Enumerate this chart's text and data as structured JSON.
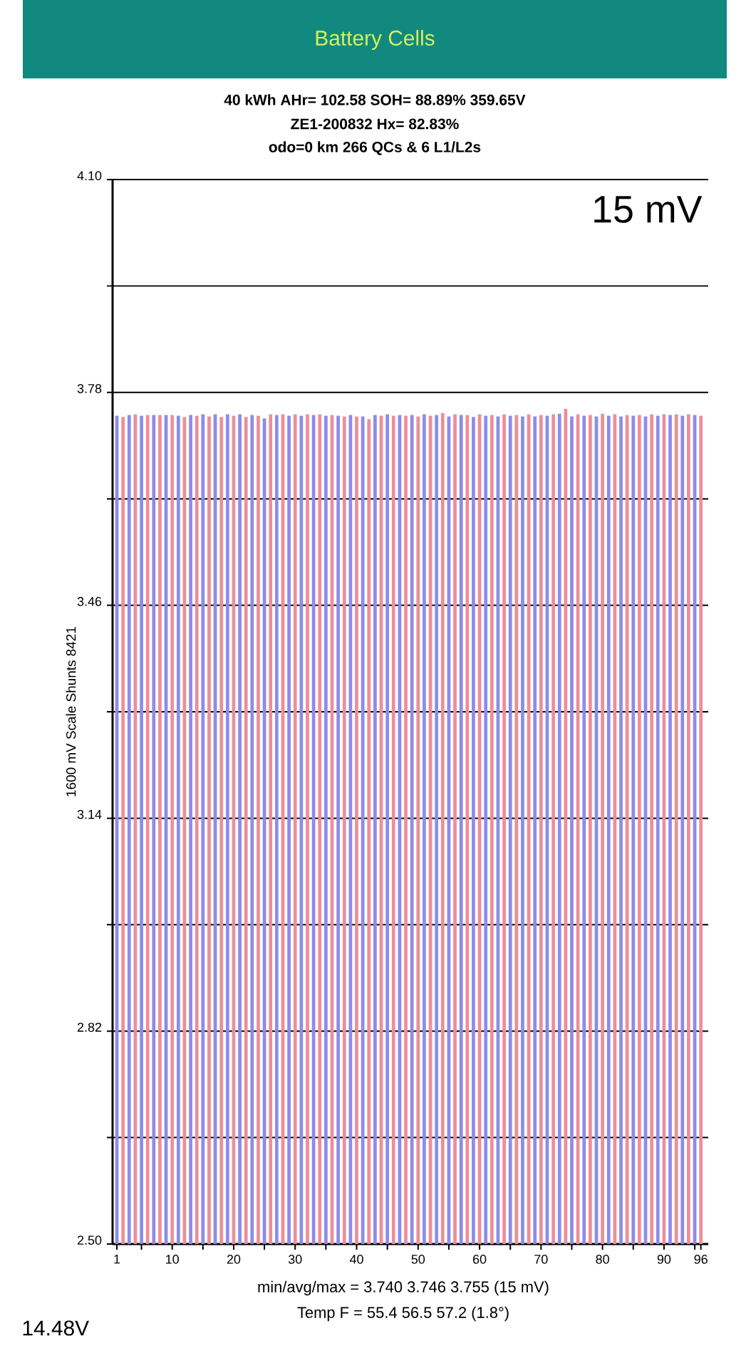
{
  "chart_data": {
    "type": "bar",
    "title": "Battery Cells",
    "ylabel": "1600 mV Scale   Shunts 8421",
    "annotations": [
      "40 kWh  AHr= 102.58  SOH= 88.89%   359.65V",
      "ZE1-200832   Hx= 82.83%",
      "odo=0 km 266 QCs & 6 L1/L2s",
      "15 mV",
      "min/avg/max = 3.740 3.746 3.755  (15 mV)",
      "Temp F = 55.4  56.5  57.2  (1.8°)",
      "14.48V"
    ],
    "x": [
      1,
      2,
      3,
      4,
      5,
      6,
      7,
      8,
      9,
      10,
      11,
      12,
      13,
      14,
      15,
      16,
      17,
      18,
      19,
      20,
      21,
      22,
      23,
      24,
      25,
      26,
      27,
      28,
      29,
      30,
      31,
      32,
      33,
      34,
      35,
      36,
      37,
      38,
      39,
      40,
      41,
      42,
      43,
      44,
      45,
      46,
      47,
      48,
      49,
      50,
      51,
      52,
      53,
      54,
      55,
      56,
      57,
      58,
      59,
      60,
      61,
      62,
      63,
      64,
      65,
      66,
      67,
      68,
      69,
      70,
      71,
      72,
      73,
      74,
      75,
      76,
      77,
      78,
      79,
      80,
      81,
      82,
      83,
      84,
      85,
      86,
      87,
      88,
      89,
      90,
      91,
      92,
      93,
      94,
      95,
      96
    ],
    "values": [
      3.745,
      3.743,
      3.746,
      3.747,
      3.745,
      3.746,
      3.746,
      3.746,
      3.746,
      3.746,
      3.745,
      3.743,
      3.746,
      3.745,
      3.747,
      3.744,
      3.747,
      3.743,
      3.747,
      3.745,
      3.747,
      3.743,
      3.746,
      3.745,
      3.741,
      3.747,
      3.746,
      3.747,
      3.745,
      3.747,
      3.745,
      3.747,
      3.746,
      3.747,
      3.745,
      3.746,
      3.745,
      3.744,
      3.746,
      3.744,
      3.744,
      3.74,
      3.746,
      3.745,
      3.747,
      3.745,
      3.746,
      3.745,
      3.746,
      3.744,
      3.747,
      3.745,
      3.746,
      3.749,
      3.744,
      3.747,
      3.746,
      3.746,
      3.743,
      3.747,
      3.745,
      3.746,
      3.744,
      3.747,
      3.745,
      3.746,
      3.744,
      3.747,
      3.744,
      3.746,
      3.745,
      3.747,
      3.748,
      3.755,
      3.744,
      3.747,
      3.745,
      3.746,
      3.744,
      3.748,
      3.745,
      3.747,
      3.744,
      3.746,
      3.745,
      3.746,
      3.744,
      3.747,
      3.745,
      3.747,
      3.746,
      3.747,
      3.745,
      3.747,
      3.746,
      3.745
    ],
    "colors": [
      "#8c8ce8",
      "#ec8f98",
      "#8c8ce8",
      "#ec8f98",
      "#8c8ce8",
      "#ec8f98",
      "#8c8ce8",
      "#ec8f98",
      "#8c8ce8",
      "#ec8f98",
      "#8c8ce8",
      "#ec8f98",
      "#8c8ce8",
      "#ec8f98",
      "#8c8ce8",
      "#ec8f98",
      "#8c8ce8",
      "#ec8f98",
      "#8c8ce8",
      "#ec8f98",
      "#8c8ce8",
      "#ec8f98",
      "#8c8ce8",
      "#ec8f98",
      "#8c8ce8",
      "#ec8f98",
      "#8c8ce8",
      "#ec8f98",
      "#8c8ce8",
      "#ec8f98",
      "#8c8ce8",
      "#ec8f98",
      "#8c8ce8",
      "#ec8f98",
      "#8c8ce8",
      "#ec8f98",
      "#8c8ce8",
      "#ec8f98",
      "#8c8ce8",
      "#ec8f98",
      "#8c8ce8",
      "#ec8f98",
      "#8c8ce8",
      "#ec8f98",
      "#8c8ce8",
      "#ec8f98",
      "#8c8ce8",
      "#ec8f98",
      "#8c8ce8",
      "#ec8f98",
      "#8c8ce8",
      "#ec8f98",
      "#8c8ce8",
      "#ec8f98",
      "#8c8ce8",
      "#ec8f98",
      "#8c8ce8",
      "#ec8f98",
      "#8c8ce8",
      "#ec8f98",
      "#8c8ce8",
      "#ec8f98",
      "#8c8ce8",
      "#ec8f98",
      "#8c8ce8",
      "#ec8f98",
      "#8c8ce8",
      "#ec8f98",
      "#8c8ce8",
      "#ec8f98",
      "#8c8ce8",
      "#ec8f98",
      "#8c8ce8",
      "#ec8f98",
      "#8c8ce8",
      "#ec8f98",
      "#8c8ce8",
      "#ec8f98",
      "#8c8ce8",
      "#ec8f98",
      "#8c8ce8",
      "#ec8f98",
      "#8c8ce8",
      "#ec8f98",
      "#8c8ce8",
      "#ec8f98",
      "#8c8ce8",
      "#ec8f98",
      "#8c8ce8",
      "#ec8f98",
      "#8c8ce8",
      "#ec8f98",
      "#8c8ce8",
      "#ec8f98",
      "#8c8ce8",
      "#ec8f98"
    ],
    "xlim": [
      0.3,
      97.2
    ],
    "xticks": [
      1,
      {
        "value": 5,
        "label": null
      },
      10,
      {
        "value": 15,
        "label": null
      },
      20,
      {
        "value": 25,
        "label": null
      },
      30,
      {
        "value": 35,
        "label": null
      },
      40,
      {
        "value": 45,
        "label": null
      },
      50,
      {
        "value": 55,
        "label": null
      },
      60,
      {
        "value": 65,
        "label": null
      },
      70,
      {
        "value": 75,
        "label": null
      },
      80,
      {
        "value": 85,
        "label": null
      },
      90,
      {
        "value": 95,
        "label": null
      },
      96
    ],
    "ylim": [
      2.5,
      4.1
    ],
    "yticks": [
      {
        "value": 2.5,
        "label": "2.50"
      },
      {
        "value": 2.66,
        "label": null
      },
      {
        "value": 2.82,
        "label": "2.82"
      },
      {
        "value": 2.98,
        "label": null
      },
      {
        "value": 3.14,
        "label": "3.14"
      },
      {
        "value": 3.3,
        "label": null
      },
      {
        "value": 3.46,
        "label": "3.46"
      },
      {
        "value": 3.62,
        "label": null
      },
      {
        "value": 3.78,
        "label": "3.78"
      },
      {
        "value": 3.94,
        "label": null
      },
      {
        "value": 4.1,
        "label": "4.10"
      }
    ],
    "grid": "y"
  }
}
